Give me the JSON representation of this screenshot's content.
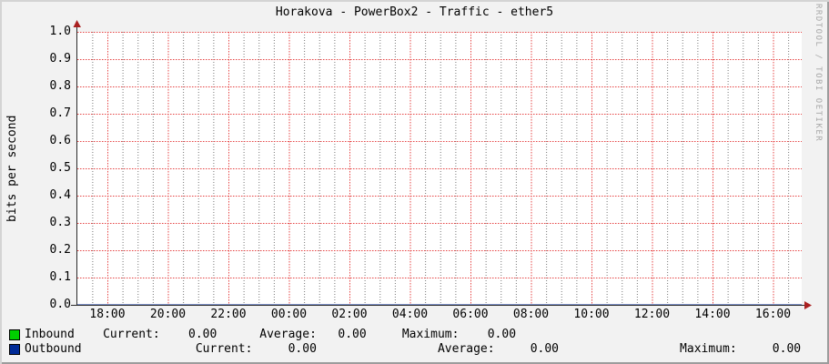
{
  "watermark": "RRDTOOL / TOBI OETIKER",
  "chart_data": {
    "type": "area",
    "title": "Horakova - PowerBox2 - Traffic - ether5",
    "xlabel": "",
    "ylabel": "bits per second",
    "ylim": [
      0.0,
      1.0
    ],
    "grid": true,
    "legend_position": "bottom",
    "y_ticks": [
      "1.0",
      "0.9",
      "0.8",
      "0.7",
      "0.6",
      "0.5",
      "0.4",
      "0.3",
      "0.2",
      "0.1",
      "0.0"
    ],
    "x_ticks": [
      "18:00",
      "20:00",
      "22:00",
      "00:00",
      "02:00",
      "04:00",
      "06:00",
      "08:00",
      "10:00",
      "12:00",
      "14:00",
      "16:00"
    ],
    "series": [
      {
        "name": "Inbound",
        "style": "area",
        "color": "#00CF00",
        "values": [
          0,
          0,
          0,
          0,
          0,
          0,
          0,
          0,
          0,
          0,
          0,
          0
        ]
      },
      {
        "name": "Outbound",
        "style": "line",
        "color": "#002A97",
        "values": [
          0,
          0,
          0,
          0,
          0,
          0,
          0,
          0,
          0,
          0,
          0,
          0
        ]
      }
    ],
    "stats": {
      "inbound": {
        "current": "0.00",
        "average": "0.00",
        "maximum": "0.00"
      },
      "outbound": {
        "current": "0.00",
        "average": "0.00",
        "maximum": "0.00"
      }
    }
  },
  "legend": {
    "rows": [
      {
        "name": "Inbound",
        "text": "Inbound    Current:    0.00      Average:   0.00     Maximum:    0.00"
      },
      {
        "name": "Outbound",
        "text": "Outbound                Current:     0.00                 Average:     0.00                 Maximum:     0.00"
      }
    ]
  },
  "colors": {
    "background": "#f2f2f2",
    "canvas": "#ffffff",
    "shade_light": "#d4d4d4",
    "shade_dark": "#9c9c9c",
    "axis": "#2b2b2b",
    "arrow": "#aa2020",
    "grid_major": "#e64646",
    "grid_minor": "#787878",
    "inbound": "#00CF00",
    "outbound": "#002A97"
  }
}
